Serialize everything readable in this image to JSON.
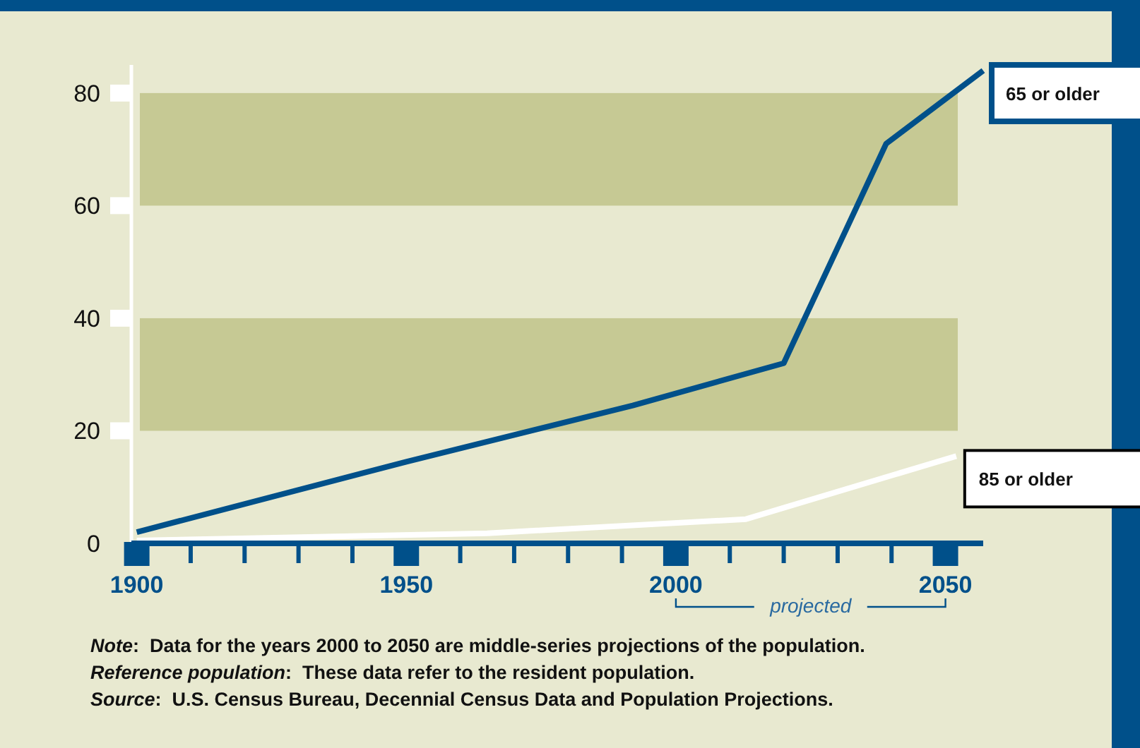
{
  "chart_data": {
    "type": "line",
    "series": [
      {
        "name": "65 or older",
        "color": "#00508a",
        "x": [
          1900,
          1950,
          1992,
          2020,
          2039,
          2057
        ],
        "values": [
          2,
          14.5,
          24.5,
          32,
          71,
          84
        ]
      },
      {
        "name": "85 or older",
        "color": "#ffffff",
        "x": [
          1900,
          1965,
          2013,
          2052
        ],
        "values": [
          0.5,
          1.8,
          4.3,
          15.5
        ]
      }
    ],
    "xlim": [
      1899,
      2057
    ],
    "ylim": [
      0,
      85
    ],
    "xticks": [
      1900,
      {
        "value": 1910,
        "label": null
      },
      {
        "value": 1920,
        "label": null
      },
      {
        "value": 1930,
        "label": null
      },
      {
        "value": 1940,
        "label": null
      },
      1950,
      {
        "value": 1960,
        "label": null
      },
      {
        "value": 1970,
        "label": null
      },
      {
        "value": 1980,
        "label": null
      },
      {
        "value": 1990,
        "label": null
      },
      2000,
      {
        "value": 2010,
        "label": null
      },
      {
        "value": 2020,
        "label": null
      },
      {
        "value": 2030,
        "label": null
      },
      {
        "value": 2040,
        "label": null
      },
      2050
    ],
    "yticks": [
      0,
      20,
      40,
      60,
      80
    ],
    "bands": [
      {
        "axis": "y",
        "from": 20,
        "to": 40,
        "color": "#c6c994"
      },
      {
        "axis": "y",
        "from": 60,
        "to": 80,
        "color": "#c6c994"
      }
    ],
    "grid": false,
    "marker": "none",
    "line_style": "solid",
    "annotations": [
      "projected",
      "Note:  Data for the years 2000 to 2050 are middle-series projections of the population.",
      "Reference population:  These data refer to the resident population.",
      "Source:  U.S. Census Bureau, Decennial Census Data and Population Projections."
    ]
  }
}
